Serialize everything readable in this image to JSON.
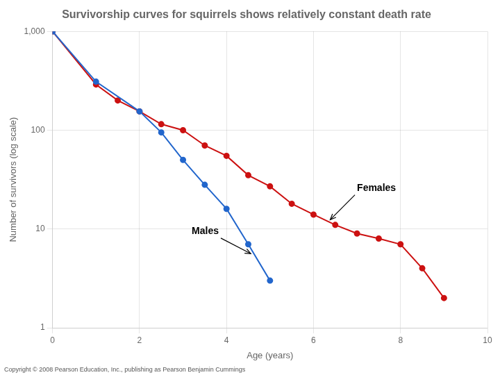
{
  "chart_data": {
    "type": "line",
    "title": "Survivorship curves for squirrels shows relatively constant death rate",
    "x_label": "Age (years)",
    "y_label": "Number of survivors (log scale)",
    "log": "y",
    "grid": true,
    "xlim": [
      0,
      10
    ],
    "ylim": [
      1,
      1000
    ],
    "xticks": [
      0,
      2,
      4,
      6,
      8,
      10
    ],
    "yticks": [
      1,
      10,
      100,
      {
        "value": 1000,
        "label": "1,000"
      }
    ],
    "series": [
      {
        "name": "Males",
        "color": "#2266cc",
        "marker": "circle",
        "x": [
          0,
          1,
          2,
          2.5,
          3,
          3.5,
          4,
          4.5,
          5
        ],
        "values": [
          1000,
          310,
          155,
          95,
          50,
          28,
          16,
          7,
          3
        ]
      },
      {
        "name": "Females",
        "color": "#cc1111",
        "marker": "circle",
        "x": [
          0,
          1,
          1.5,
          2,
          2.5,
          3,
          3.5,
          4,
          4.5,
          5,
          5.5,
          6,
          6.5,
          7,
          7.5,
          8,
          8.5,
          9
        ],
        "values": [
          1000,
          290,
          200,
          155,
          115,
          100,
          70,
          55,
          35,
          27,
          18,
          14,
          11,
          9,
          8,
          7,
          4,
          2
        ]
      }
    ],
    "annotations": [
      {
        "text": "Males",
        "xy": [
          4.6,
          5.5
        ],
        "xytext": [
          3.2,
          9.5
        ]
      },
      {
        "text": "Females",
        "xy": [
          6.35,
          12
        ],
        "xytext": [
          7.0,
          26
        ]
      },
      {
        "text": "Copyright © 2008 Pearson Education, Inc., publishing as Pearson Benjamin Cummings"
      }
    ]
  }
}
